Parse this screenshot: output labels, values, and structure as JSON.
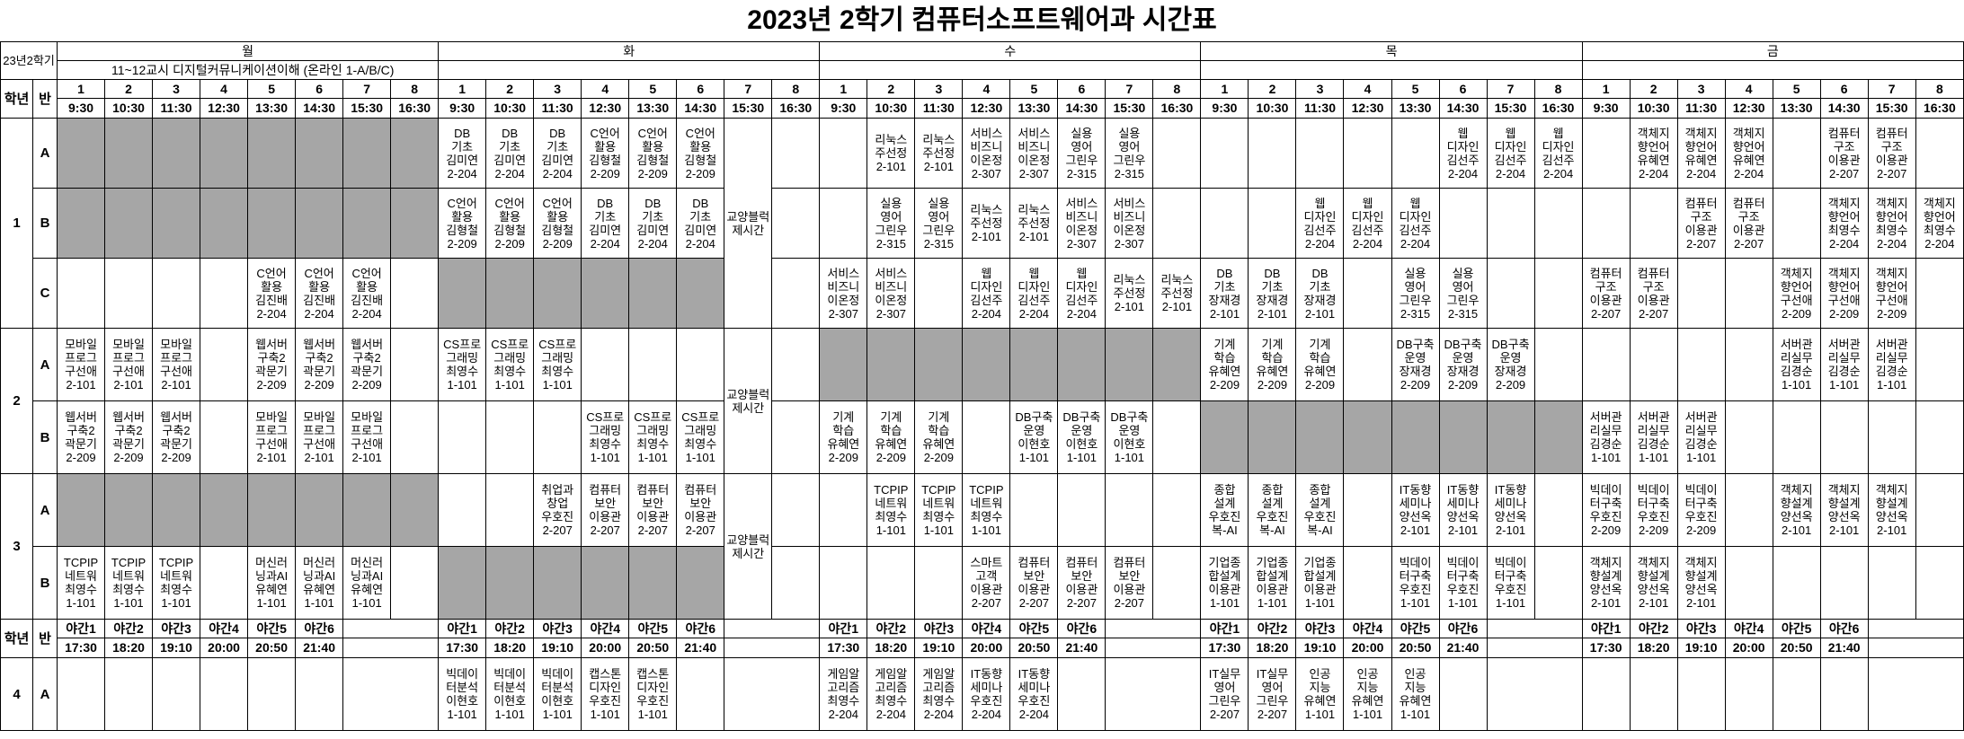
{
  "title": "2023년 2학기 컴퓨터소프트웨어과 시간표",
  "semester_label": "23년2학기",
  "days": [
    "월",
    "화",
    "수",
    "목",
    "금"
  ],
  "mon_note": "11~12교시 디지털커뮤니케이션이해 (온라인 1-A/B/C)",
  "hdr_grade": "학년",
  "hdr_class": "반",
  "periods": [
    "1",
    "2",
    "3",
    "4",
    "5",
    "6",
    "7",
    "8"
  ],
  "times": [
    "9:30",
    "10:30",
    "11:30",
    "12:30",
    "13:30",
    "14:30",
    "15:30",
    "16:30"
  ],
  "gyoyang": "교양블럭제시간",
  "night_periods": [
    "야간1",
    "야간2",
    "야간3",
    "야간4",
    "야간5",
    "야간6"
  ],
  "night_times": [
    "17:30",
    "18:20",
    "19:10",
    "20:00",
    "20:50",
    "21:40"
  ],
  "colors": {
    "gray": "#a6a6a6",
    "border": "#000000"
  },
  "rows": [
    {
      "grade": "1",
      "cls": "A",
      "cells": [
        "#",
        "#",
        "#",
        "#",
        "#",
        "#",
        "#",
        "#",
        "DB\n기초\n김미연\n2-204",
        "DB\n기초\n김미연\n2-204",
        "DB\n기초\n김미연\n2-204",
        "C언어\n활용\n김형철\n2-209",
        "C언어\n활용\n김형철\n2-209",
        "C언어\n활용\n김형철\n2-209",
        "@",
        "",
        "",
        "리눅스\n주선정\n2-101",
        "리눅스\n주선정\n2-101",
        "서비스\n비즈니\n이온정\n2-307",
        "서비스\n비즈니\n이온정\n2-307",
        "실용\n영어\n그린우\n2-315",
        "실용\n영어\n그린우\n2-315",
        "",
        "",
        "",
        "",
        "",
        "",
        "웹\n디자인\n김선주\n2-204",
        "웹\n디자인\n김선주\n2-204",
        "웹\n디자인\n김선주\n2-204",
        "",
        "객체지\n향언어\n유혜연\n2-204",
        "객체지\n향언어\n유혜연\n2-204",
        "객체지\n향언어\n유혜연\n2-204",
        "",
        "컴퓨터\n구조\n이용관\n2-207",
        "컴퓨터\n구조\n이용관\n2-207",
        ""
      ]
    },
    {
      "grade": "",
      "cls": "B",
      "cells": [
        "#",
        "#",
        "#",
        "#",
        "#",
        "#",
        "#",
        "#",
        "C언어\n활용\n김형철\n2-209",
        "C언어\n활용\n김형철\n2-209",
        "C언어\n활용\n김형철\n2-209",
        "DB\n기초\n김미연\n2-204",
        "DB\n기초\n김미연\n2-204",
        "DB\n기초\n김미연\n2-204",
        "^",
        "",
        "",
        "실용\n영어\n그린우\n2-315",
        "실용\n영어\n그린우\n2-315",
        "리눅스\n주선정\n2-101",
        "리눅스\n주선정\n2-101",
        "서비스\n비즈니\n이온정\n2-307",
        "서비스\n비즈니\n이온정\n2-307",
        "",
        "",
        "",
        "웹\n디자인\n김선주\n2-204",
        "웹\n디자인\n김선주\n2-204",
        "웹\n디자인\n김선주\n2-204",
        "",
        "",
        "",
        "",
        "",
        "컴퓨터\n구조\n이용관\n2-207",
        "컴퓨터\n구조\n이용관\n2-207",
        "",
        "객체지\n향언어\n최영수\n2-204",
        "객체지\n향언어\n최영수\n2-204",
        "객체지\n향언어\n최영수\n2-204"
      ]
    },
    {
      "grade": "",
      "cls": "C",
      "cells": [
        "",
        "",
        "",
        "",
        "C언어\n활용\n김진배\n2-204",
        "C언어\n활용\n김진배\n2-204",
        "C언어\n활용\n김진배\n2-204",
        "",
        "#",
        "#",
        "#",
        "#",
        "#",
        "#",
        "^",
        "",
        "서비스\n비즈니\n이온정\n2-307",
        "서비스\n비즈니\n이온정\n2-307",
        "",
        "웹\n디자인\n김선주\n2-204",
        "웹\n디자인\n김선주\n2-204",
        "웹\n디자인\n김선주\n2-204",
        "리눅스\n주선정\n2-101",
        "리눅스\n주선정\n2-101",
        "DB\n기초\n장재경\n2-101",
        "DB\n기초\n장재경\n2-101",
        "DB\n기초\n장재경\n2-101",
        "",
        "실용\n영어\n그린우\n2-315",
        "실용\n영어\n그린우\n2-315",
        "",
        "",
        "컴퓨터\n구조\n이용관\n2-207",
        "컴퓨터\n구조\n이용관\n2-207",
        "",
        "",
        "객체지\n향언어\n구선애\n2-209",
        "객체지\n향언어\n구선애\n2-209",
        "객체지\n향언어\n구선애\n2-209",
        ""
      ]
    },
    {
      "grade": "2",
      "cls": "A",
      "cells": [
        "모바일\n프로그\n구선애\n2-101",
        "모바일\n프로그\n구선애\n2-101",
        "모바일\n프로그\n구선애\n2-101",
        "",
        "웹서버\n구축2\n곽문기\n2-209",
        "웹서버\n구축2\n곽문기\n2-209",
        "웹서버\n구축2\n곽문기\n2-209",
        "",
        "CS프로\n그래밍\n최영수\n1-101",
        "CS프로\n그래밍\n최영수\n1-101",
        "CS프로\n그래밍\n최영수\n1-101",
        "",
        "",
        "",
        "@",
        "",
        "#",
        "#",
        "#",
        "#",
        "#",
        "#",
        "#",
        "#",
        "기계\n학습\n유혜연\n2-209",
        "기계\n학습\n유혜연\n2-209",
        "기계\n학습\n유혜연\n2-209",
        "",
        "DB구축\n운영\n장재경\n2-209",
        "DB구축\n운영\n장재경\n2-209",
        "DB구축\n운영\n장재경\n2-209",
        "",
        "",
        "",
        "",
        "",
        "서버관\n리실무\n김경순\n1-101",
        "서버관\n리실무\n김경순\n1-101",
        "서버관\n리실무\n김경순\n1-101",
        ""
      ]
    },
    {
      "grade": "",
      "cls": "B",
      "cells": [
        "웹서버\n구축2\n곽문기\n2-209",
        "웹서버\n구축2\n곽문기\n2-209",
        "웹서버\n구축2\n곽문기\n2-209",
        "",
        "모바일\n프로그\n구선애\n2-101",
        "모바일\n프로그\n구선애\n2-101",
        "모바일\n프로그\n구선애\n2-101",
        "",
        "",
        "",
        "",
        "CS프로\n그래밍\n최영수\n1-101",
        "CS프로\n그래밍\n최영수\n1-101",
        "CS프로\n그래밍\n최영수\n1-101",
        "^",
        "",
        "기계\n학습\n유혜연\n2-209",
        "기계\n학습\n유혜연\n2-209",
        "기계\n학습\n유혜연\n2-209",
        "",
        "DB구축\n운영\n이현호\n1-101",
        "DB구축\n운영\n이현호\n1-101",
        "DB구축\n운영\n이현호\n1-101",
        "",
        "#",
        "#",
        "#",
        "#",
        "#",
        "#",
        "#",
        "#",
        "서버관\n리실무\n김경순\n1-101",
        "서버관\n리실무\n김경순\n1-101",
        "서버관\n리실무\n김경순\n1-101",
        "",
        "",
        "",
        "",
        ""
      ]
    },
    {
      "grade": "3",
      "cls": "A",
      "cells": [
        "#",
        "#",
        "#",
        "#",
        "#",
        "#",
        "#",
        "#",
        "",
        "",
        "취업과\n창업\n우호진\n2-207",
        "컴퓨터\n보안\n이용관\n2-207",
        "컴퓨터\n보안\n이용관\n2-207",
        "컴퓨터\n보안\n이용관\n2-207",
        "@",
        "",
        "",
        "TCPIP\n네트워\n최영수\n1-101",
        "TCPIP\n네트워\n최영수\n1-101",
        "TCPIP\n네트워\n최영수\n1-101",
        "",
        "",
        "",
        "",
        "종합\n설계\n우호진\n복-AI",
        "종합\n설계\n우호진\n복-AI",
        "종합\n설계\n우호진\n복-AI",
        "",
        "IT동향\n세미나\n양선옥\n2-101",
        "IT동향\n세미나\n양선옥\n2-101",
        "IT동향\n세미나\n양선옥\n2-101",
        "",
        "빅데이\n터구축\n우호진\n2-209",
        "빅데이\n터구축\n우호진\n2-209",
        "빅데이\n터구축\n우호진\n2-209",
        "",
        "객체지\n향설계\n양선옥\n2-101",
        "객체지\n향설계\n양선옥\n2-101",
        "객체지\n향설계\n양선옥\n2-101",
        ""
      ]
    },
    {
      "grade": "",
      "cls": "B",
      "cells": [
        "TCPIP\n네트워\n최영수\n1-101",
        "TCPIP\n네트워\n최영수\n1-101",
        "TCPIP\n네트워\n최영수\n1-101",
        "",
        "머신러\n닝과AI\n유혜연\n1-101",
        "머신러\n닝과AI\n유혜연\n1-101",
        "머신러\n닝과AI\n유혜연\n1-101",
        "",
        "#",
        "#",
        "#",
        "#",
        "#",
        "#",
        "^",
        "",
        "",
        "",
        "",
        "스마트\n고객\n이용관\n2-207",
        "컴퓨터\n보안\n이용관\n2-207",
        "컴퓨터\n보안\n이용관\n2-207",
        "컴퓨터\n보안\n이용관\n2-207",
        "",
        "기업종\n합설계\n이용관\n1-101",
        "기업종\n합설계\n이용관\n1-101",
        "기업종\n합설계\n이용관\n1-101",
        "",
        "빅데이\n터구축\n우호진\n1-101",
        "빅데이\n터구축\n우호진\n1-101",
        "빅데이\n터구축\n우호진\n1-101",
        "",
        "객체지\n향설계\n양선옥\n2-101",
        "객체지\n향설계\n양선옥\n2-101",
        "객체지\n향설계\n양선옥\n2-101",
        "",
        "",
        "",
        "",
        ""
      ]
    }
  ],
  "night_row": {
    "grade": "4",
    "cls": "A",
    "cells": [
      "",
      "",
      "",
      "",
      "",
      "",
      "빅데이\n터분석\n이현호\n1-101",
      "빅데이\n터분석\n이현호\n1-101",
      "빅데이\n터분석\n이현호\n1-101",
      "캡스톤\n디자인\n우호진\n1-101",
      "캡스톤\n디자인\n우호진\n1-101",
      "",
      "게임알\n고리즘\n최영수\n2-204",
      "게임알\n고리즘\n최영수\n2-204",
      "게임알\n고리즘\n최영수\n2-204",
      "IT동향\n세미나\n우호진\n2-204",
      "IT동향\n세미나\n우호진\n2-204",
      "",
      "IT실무\n영어\n그린우\n2-207",
      "IT실무\n영어\n그린우\n2-207",
      "인공\n지능\n유혜연\n1-101",
      "인공\n지능\n유혜연\n1-101",
      "인공\n지능\n유혜연\n1-101",
      "",
      "",
      "",
      "",
      "",
      "",
      ""
    ]
  }
}
